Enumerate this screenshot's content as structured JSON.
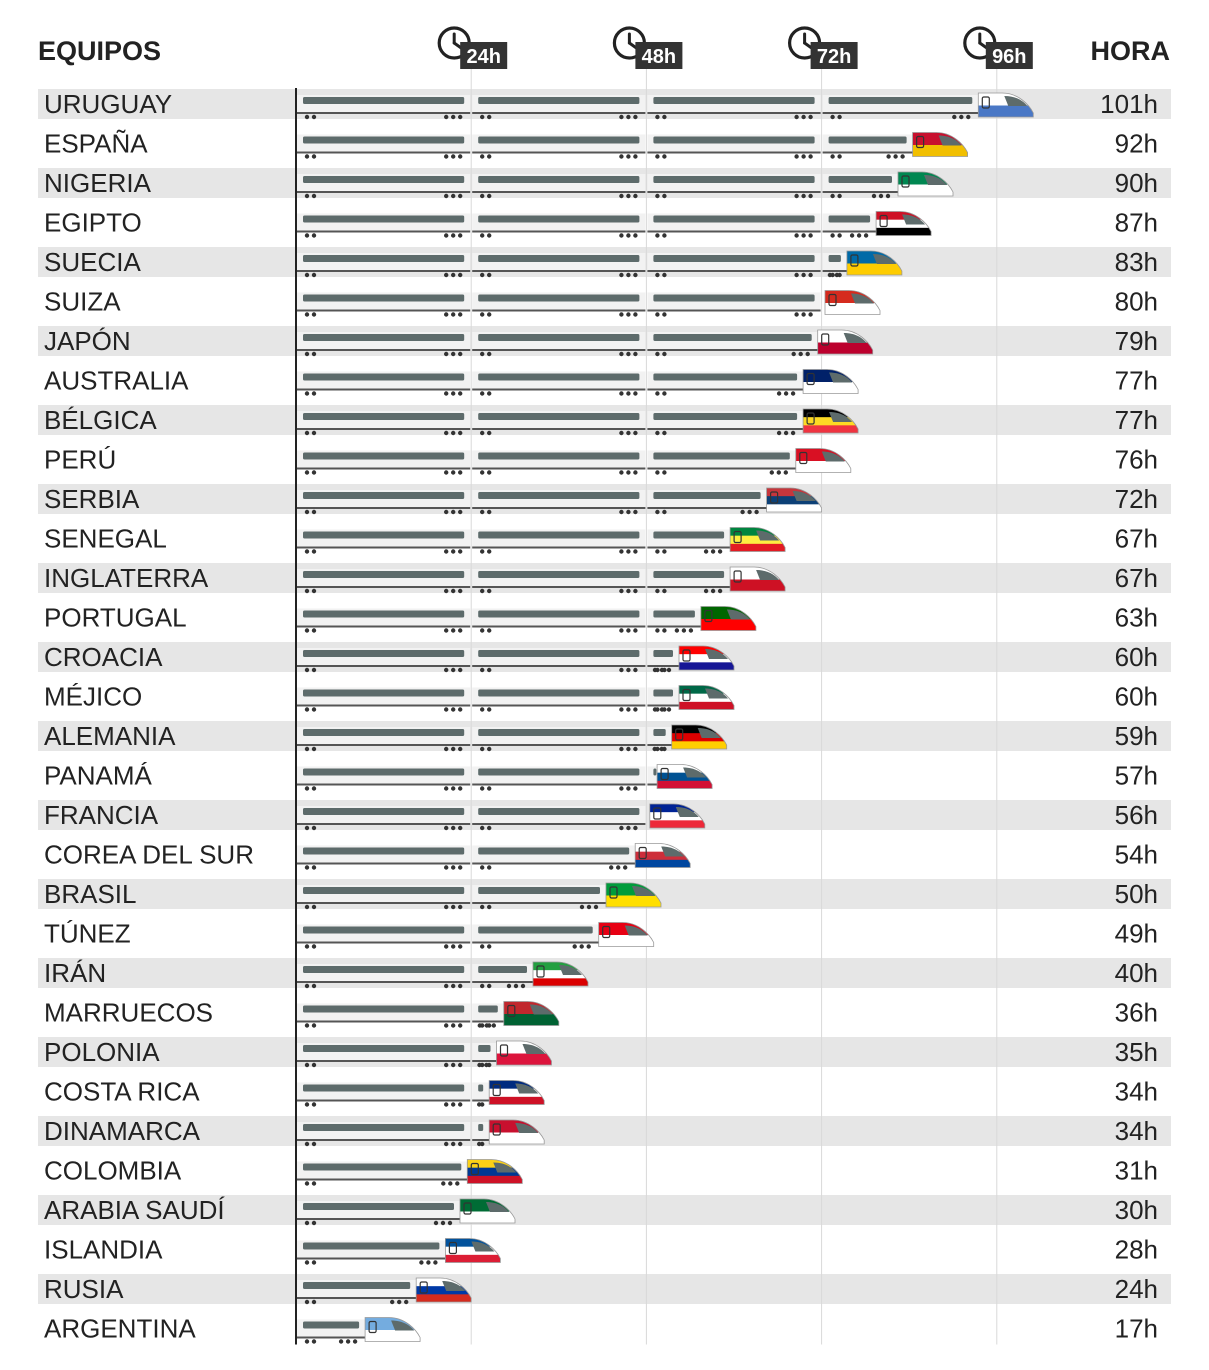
{
  "header": {
    "teams_label": "EQUIPOS",
    "hours_label": "HORA"
  },
  "colors": {
    "row_stripe": "#e6e6e6",
    "car_body": "#f2f2f2",
    "car_window": "#5d6b6b",
    "gridline": "#d9d9d9",
    "axis": "#222222",
    "tick_badge": "#333333"
  },
  "chart_data": {
    "type": "bar",
    "title": "",
    "xlabel": "",
    "ylabel": "",
    "xlim": [
      0,
      101
    ],
    "x_ticks": [
      {
        "value": 24,
        "label": "24h",
        "icon": "clock-icon"
      },
      {
        "value": 48,
        "label": "48h",
        "icon": "clock-icon"
      },
      {
        "value": 72,
        "label": "72h",
        "icon": "clock-icon"
      },
      {
        "value": 96,
        "label": "96h",
        "icon": "clock-icon"
      }
    ],
    "bar_style": "train",
    "categories": [
      "URUGUAY",
      "ESPAÑA",
      "NIGERIA",
      "EGIPTO",
      "SUECIA",
      "SUIZA",
      "JAPÓN",
      "AUSTRALIA",
      "BÉLGICA",
      "PERÚ",
      "SERBIA",
      "SENEGAL",
      "INGLATERRA",
      "PORTUGAL",
      "CROACIA",
      "MÉJICO",
      "ALEMANIA",
      "PANAMÁ",
      "FRANCIA",
      "COREA DEL SUR",
      "BRASIL",
      "TÚNEZ",
      "IRÁN",
      "MARRUECOS",
      "POLONIA",
      "COSTA RICA",
      "DINAMARCA",
      "COLOMBIA",
      "ARABIA SAUDÍ",
      "ISLANDIA",
      "RUSIA",
      "ARGENTINA"
    ],
    "values": [
      101,
      92,
      90,
      87,
      83,
      80,
      79,
      77,
      77,
      76,
      72,
      67,
      67,
      63,
      60,
      60,
      59,
      57,
      56,
      54,
      50,
      49,
      40,
      36,
      35,
      34,
      34,
      31,
      30,
      28,
      24,
      17
    ],
    "value_labels": [
      "101h",
      "92h",
      "90h",
      "87h",
      "83h",
      "80h",
      "79h",
      "77h",
      "77h",
      "76h",
      "72h",
      "67h",
      "67h",
      "63h",
      "60h",
      "60h",
      "59h",
      "57h",
      "56h",
      "54h",
      "50h",
      "49h",
      "40h",
      "36h",
      "35h",
      "34h",
      "34h",
      "31h",
      "30h",
      "28h",
      "24h",
      "17h"
    ],
    "flag_icons": [
      "uruguay-flag-icon",
      "spain-flag-icon",
      "nigeria-flag-icon",
      "egypt-flag-icon",
      "sweden-flag-icon",
      "switzerland-flag-icon",
      "japan-flag-icon",
      "australia-flag-icon",
      "belgium-flag-icon",
      "peru-flag-icon",
      "serbia-flag-icon",
      "senegal-flag-icon",
      "england-flag-icon",
      "portugal-flag-icon",
      "croatia-flag-icon",
      "mexico-flag-icon",
      "germany-flag-icon",
      "panama-flag-icon",
      "france-flag-icon",
      "south-korea-flag-icon",
      "brazil-flag-icon",
      "tunisia-flag-icon",
      "iran-flag-icon",
      "morocco-flag-icon",
      "poland-flag-icon",
      "costa-rica-flag-icon",
      "denmark-flag-icon",
      "colombia-flag-icon",
      "saudi-arabia-flag-icon",
      "iceland-flag-icon",
      "russia-flag-icon",
      "argentina-flag-icon"
    ],
    "flag_colors": [
      [
        "#ffffff",
        "#4a78c6"
      ],
      [
        "#c8102e",
        "#f1bf00"
      ],
      [
        "#008751",
        "#ffffff"
      ],
      [
        "#ce1126",
        "#ffffff",
        "#000000"
      ],
      [
        "#006aa7",
        "#fecc00"
      ],
      [
        "#d52b1e",
        "#ffffff"
      ],
      [
        "#ffffff",
        "#bc002d"
      ],
      [
        "#012169",
        "#ffffff"
      ],
      [
        "#000000",
        "#fdda24",
        "#ef3340"
      ],
      [
        "#d91023",
        "#ffffff"
      ],
      [
        "#c6363c",
        "#0c4076",
        "#ffffff"
      ],
      [
        "#00853f",
        "#fdef42",
        "#e31b23"
      ],
      [
        "#ffffff",
        "#ce1124"
      ],
      [
        "#006600",
        "#ff0000"
      ],
      [
        "#ff0000",
        "#ffffff",
        "#171796"
      ],
      [
        "#006847",
        "#ffffff",
        "#ce1126"
      ],
      [
        "#000000",
        "#dd0000",
        "#ffce00"
      ],
      [
        "#ffffff",
        "#005293",
        "#d21034"
      ],
      [
        "#002395",
        "#ffffff",
        "#ed2939"
      ],
      [
        "#ffffff",
        "#cd2e3a",
        "#0047a0"
      ],
      [
        "#009c3b",
        "#ffdf00"
      ],
      [
        "#e70013",
        "#ffffff"
      ],
      [
        "#239f40",
        "#ffffff",
        "#da0000"
      ],
      [
        "#c1272d",
        "#006233"
      ],
      [
        "#ffffff",
        "#dc143c"
      ],
      [
        "#002b7f",
        "#ffffff",
        "#ce1126"
      ],
      [
        "#c8102e",
        "#ffffff"
      ],
      [
        "#fcd116",
        "#003893",
        "#ce1126"
      ],
      [
        "#006c35",
        "#ffffff"
      ],
      [
        "#02529c",
        "#ffffff",
        "#dc1e35"
      ],
      [
        "#ffffff",
        "#0039a6",
        "#d52b1e"
      ],
      [
        "#74acdf",
        "#ffffff"
      ]
    ]
  }
}
